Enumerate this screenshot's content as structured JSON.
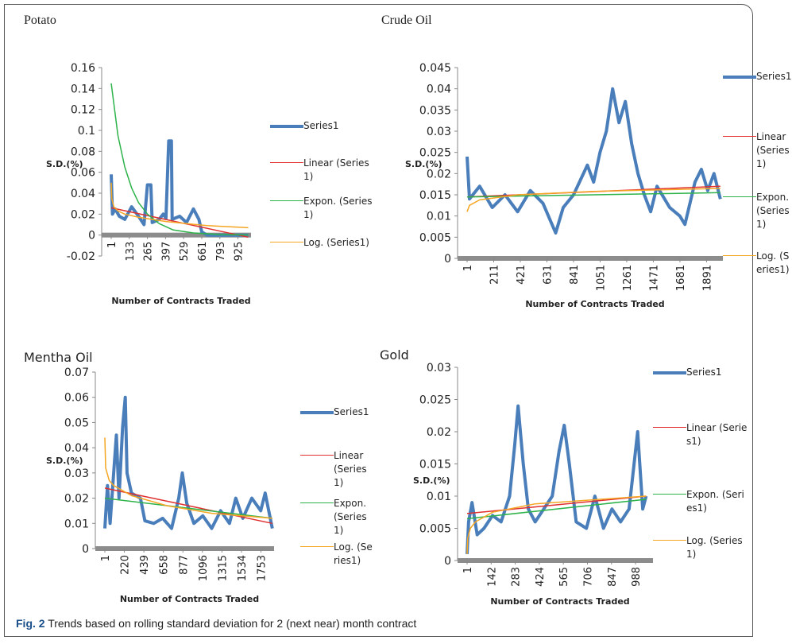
{
  "chart_data": [
    {
      "type": "line",
      "title": "Potato",
      "ylabel": "S.D.(%)",
      "xlabel": "Number of Contracts Traded",
      "xlim": [
        1,
        1020
      ],
      "ylim": [
        -0.02,
        0.16
      ],
      "xticks": [
        1,
        133,
        265,
        397,
        529,
        661,
        793,
        925
      ],
      "yticks": [
        -0.02,
        0,
        0.02,
        0.04,
        0.06,
        0.08,
        0.1,
        0.12,
        0.14,
        0.16
      ],
      "series": [
        {
          "name": "Series1",
          "color": "#4a7ebb",
          "x": [
            1,
            10,
            30,
            60,
            100,
            150,
            200,
            240,
            265,
            290,
            300,
            350,
            380,
            400,
            420,
            440,
            445,
            500,
            550,
            600,
            640,
            661,
            700,
            1000
          ],
          "values": [
            0.058,
            0.02,
            0.025,
            0.018,
            0.015,
            0.027,
            0.018,
            0.01,
            0.048,
            0.048,
            0.012,
            0.015,
            0.02,
            0.016,
            0.09,
            0.09,
            0.015,
            0.018,
            0.012,
            0.025,
            0.015,
            0.003,
            0,
            0
          ]
        },
        {
          "name": "Linear (Series1)",
          "color": "#e0302f",
          "x": [
            1,
            1000
          ],
          "values": [
            0.026,
            -0.002
          ]
        },
        {
          "name": "Expon. (Series1)",
          "color": "#2db34a",
          "x": [
            1,
            50,
            100,
            150,
            200,
            265,
            350,
            450,
            600,
            800,
            1000
          ],
          "values": [
            0.145,
            0.095,
            0.065,
            0.045,
            0.031,
            0.02,
            0.011,
            0.005,
            0.002,
            0.0005,
            0.0001
          ]
        },
        {
          "name": "Log. (Series1)",
          "color": "#f5a623",
          "x": [
            1,
            5,
            20,
            50,
            100,
            200,
            400,
            700,
            1000
          ],
          "values": [
            0.05,
            0.035,
            0.027,
            0.023,
            0.02,
            0.017,
            0.013,
            0.009,
            0.007
          ]
        }
      ]
    },
    {
      "type": "line",
      "title": "Crude Oil",
      "ylabel": "S.D.(%)",
      "xlabel": "Number of Contracts Traded",
      "xlim": [
        1,
        2020
      ],
      "ylim": [
        0,
        0.045
      ],
      "xticks": [
        1,
        211,
        421,
        631,
        841,
        1051,
        1261,
        1471,
        1681,
        1891
      ],
      "yticks": [
        0,
        0.005,
        0.01,
        0.015,
        0.02,
        0.025,
        0.03,
        0.035,
        0.04,
        0.045
      ],
      "series": [
        {
          "name": "Series1",
          "color": "#4a7ebb",
          "x": [
            1,
            20,
            100,
            200,
            300,
            400,
            500,
            600,
            700,
            760,
            841,
            950,
            1000,
            1050,
            1100,
            1150,
            1200,
            1250,
            1300,
            1350,
            1400,
            1450,
            1500,
            1600,
            1680,
            1720,
            1800,
            1850,
            1900,
            1950,
            2000
          ],
          "values": [
            0.024,
            0.014,
            0.017,
            0.012,
            0.015,
            0.011,
            0.016,
            0.013,
            0.006,
            0.012,
            0.015,
            0.022,
            0.018,
            0.025,
            0.03,
            0.04,
            0.032,
            0.037,
            0.027,
            0.02,
            0.015,
            0.011,
            0.017,
            0.012,
            0.01,
            0.008,
            0.018,
            0.021,
            0.016,
            0.02,
            0.014
          ]
        },
        {
          "name": "Linear (Series1)",
          "color": "#e0302f",
          "x": [
            1,
            2000
          ],
          "values": [
            0.0145,
            0.017
          ]
        },
        {
          "name": "Expon. (Series1)",
          "color": "#2db34a",
          "x": [
            1,
            2000
          ],
          "values": [
            0.0145,
            0.0155
          ]
        },
        {
          "name": "Log. (Series1)",
          "color": "#f5a623",
          "x": [
            1,
            20,
            100,
            400,
            1000,
            2000
          ],
          "values": [
            0.011,
            0.0125,
            0.0138,
            0.015,
            0.0158,
            0.0165
          ]
        }
      ]
    },
    {
      "type": "line",
      "title": "Mentha Oil",
      "ylabel": "S.D.(%)",
      "xlabel": "Number of Contracts Traded",
      "xlim": [
        1,
        1900
      ],
      "ylim": [
        0,
        0.07
      ],
      "xticks": [
        1,
        220,
        439,
        658,
        877,
        1096,
        1315,
        1534,
        1753
      ],
      "yticks": [
        0,
        0.01,
        0.02,
        0.03,
        0.04,
        0.05,
        0.06,
        0.07
      ],
      "series": [
        {
          "name": "Series1",
          "color": "#4a7ebb",
          "x": [
            1,
            30,
            60,
            100,
            130,
            160,
            200,
            230,
            250,
            300,
            400,
            450,
            550,
            650,
            750,
            830,
            870,
            920,
            1000,
            1100,
            1200,
            1300,
            1400,
            1470,
            1550,
            1650,
            1750,
            1800,
            1880
          ],
          "values": [
            0.008,
            0.025,
            0.01,
            0.03,
            0.045,
            0.02,
            0.048,
            0.06,
            0.03,
            0.022,
            0.02,
            0.011,
            0.01,
            0.012,
            0.008,
            0.02,
            0.03,
            0.018,
            0.01,
            0.013,
            0.008,
            0.015,
            0.01,
            0.02,
            0.012,
            0.02,
            0.015,
            0.022,
            0.008
          ]
        },
        {
          "name": "Linear (Series1)",
          "color": "#e0302f",
          "x": [
            1,
            1880
          ],
          "values": [
            0.024,
            0.01
          ]
        },
        {
          "name": "Expon. (Series1)",
          "color": "#2db34a",
          "x": [
            1,
            1880
          ],
          "values": [
            0.02,
            0.012
          ]
        },
        {
          "name": "Log. (Series1)",
          "color": "#f5a623",
          "x": [
            1,
            10,
            50,
            100,
            300,
            700,
            1200,
            1880
          ],
          "values": [
            0.044,
            0.032,
            0.027,
            0.025,
            0.021,
            0.017,
            0.014,
            0.012
          ]
        }
      ]
    },
    {
      "type": "line",
      "title": "Gold",
      "ylabel": "S.D.(%)",
      "xlabel": "Number of Contracts Traded",
      "xlim": [
        1,
        1090
      ],
      "ylim": [
        0,
        0.03
      ],
      "xticks": [
        1,
        142,
        283,
        424,
        565,
        706,
        847,
        988
      ],
      "yticks": [
        0,
        0.005,
        0.01,
        0.015,
        0.02,
        0.025,
        0.03
      ],
      "series": [
        {
          "name": "Series1",
          "color": "#4a7ebb",
          "x": [
            1,
            10,
            30,
            60,
            100,
            150,
            200,
            250,
            280,
            300,
            330,
            360,
            400,
            450,
            500,
            540,
            570,
            600,
            640,
            700,
            750,
            800,
            850,
            900,
            950,
            1000,
            1030,
            1050
          ],
          "values": [
            0.001,
            0.006,
            0.009,
            0.004,
            0.005,
            0.007,
            0.006,
            0.01,
            0.018,
            0.024,
            0.015,
            0.008,
            0.006,
            0.008,
            0.01,
            0.017,
            0.021,
            0.015,
            0.006,
            0.005,
            0.01,
            0.005,
            0.008,
            0.006,
            0.008,
            0.02,
            0.008,
            0.01
          ]
        },
        {
          "name": "Linear (Series1)",
          "color": "#e0302f",
          "x": [
            1,
            1050
          ],
          "values": [
            0.0073,
            0.01
          ]
        },
        {
          "name": "Expon. (Series1)",
          "color": "#2db34a",
          "x": [
            1,
            1050
          ],
          "values": [
            0.0065,
            0.0095
          ]
        },
        {
          "name": "Log. (Series1)",
          "color": "#f5a623",
          "x": [
            1,
            5,
            20,
            50,
            150,
            400,
            1050
          ],
          "values": [
            0.001,
            0.0035,
            0.005,
            0.006,
            0.0075,
            0.0088,
            0.01
          ]
        }
      ]
    }
  ],
  "caption": {
    "label": "Fig. 2",
    "text": "Trends based on rolling standard deviation for 2 (next near) month contract"
  }
}
